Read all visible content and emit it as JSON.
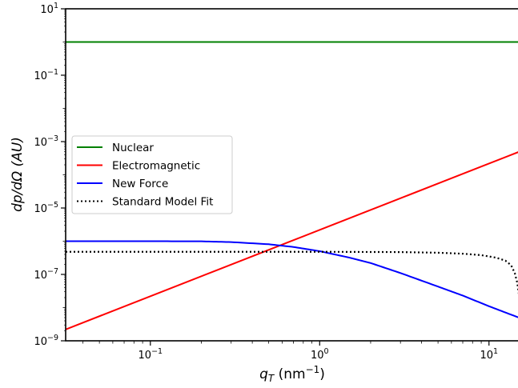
{
  "chart_data": {
    "type": "line",
    "xscale": "log",
    "yscale": "log",
    "xlim": [
      0.0316,
      15
    ],
    "ylim": [
      1e-09,
      10
    ],
    "xlabel": {
      "base": "q",
      "sub": "T",
      "unit_open": " (nm",
      "unit_sup": "−1",
      "unit_close": ")"
    },
    "ylabel": "dp/dΩ (AU)",
    "x_ticks": [
      {
        "value": 0.1,
        "base": "10",
        "exp": "−1"
      },
      {
        "value": 1,
        "base": "10",
        "exp": "0"
      },
      {
        "value": 10,
        "base": "10",
        "exp": "1"
      }
    ],
    "y_ticks": [
      {
        "value": 1e-09,
        "base": "10",
        "exp": "−9"
      },
      {
        "value": 1e-07,
        "base": "10",
        "exp": "−7"
      },
      {
        "value": 1e-05,
        "base": "10",
        "exp": "−5"
      },
      {
        "value": 0.001,
        "base": "10",
        "exp": "−3"
      },
      {
        "value": 0.1,
        "base": "10",
        "exp": "−1"
      },
      {
        "value": 10,
        "base": "10",
        "exp": "1"
      }
    ],
    "legend_position": "center-left",
    "series": [
      {
        "name": "Nuclear",
        "color": "#008000",
        "style": "solid",
        "x": [
          0.0316,
          15
        ],
        "y": [
          1.0,
          1.0
        ]
      },
      {
        "name": "Electromagnetic",
        "color": "#ff0000",
        "style": "solid",
        "x": [
          0.0316,
          15
        ],
        "y": [
          2.2e-09,
          0.00049
        ]
      },
      {
        "name": "New Force",
        "color": "#0000ff",
        "style": "solid",
        "x": [
          0.0316,
          0.1,
          0.2,
          0.3,
          0.5,
          0.7,
          1.0,
          1.5,
          2.0,
          3.0,
          5.0,
          7.0,
          10.0,
          15.0
        ],
        "y": [
          1e-06,
          1e-06,
          9.9e-07,
          9.4e-07,
          8.1e-07,
          6.7e-07,
          5e-07,
          3.2e-07,
          2.2e-07,
          1.1e-07,
          4.3e-08,
          2.3e-08,
          1.1e-08,
          5e-09
        ]
      },
      {
        "name": "Standard Model Fit",
        "color": "#000000",
        "style": "dotted",
        "x": [
          0.0316,
          0.1,
          1.0,
          3.0,
          5.0,
          7.0,
          9.0,
          11.0,
          12.5,
          13.5,
          14.2,
          14.7,
          15.0
        ],
        "y": [
          4.8e-07,
          4.8e-07,
          4.8e-07,
          4.7e-07,
          4.5e-07,
          4.2e-07,
          3.8e-07,
          3.2e-07,
          2.6e-07,
          1.9e-07,
          1.1e-07,
          5.5e-08,
          2.6e-08
        ]
      }
    ]
  }
}
